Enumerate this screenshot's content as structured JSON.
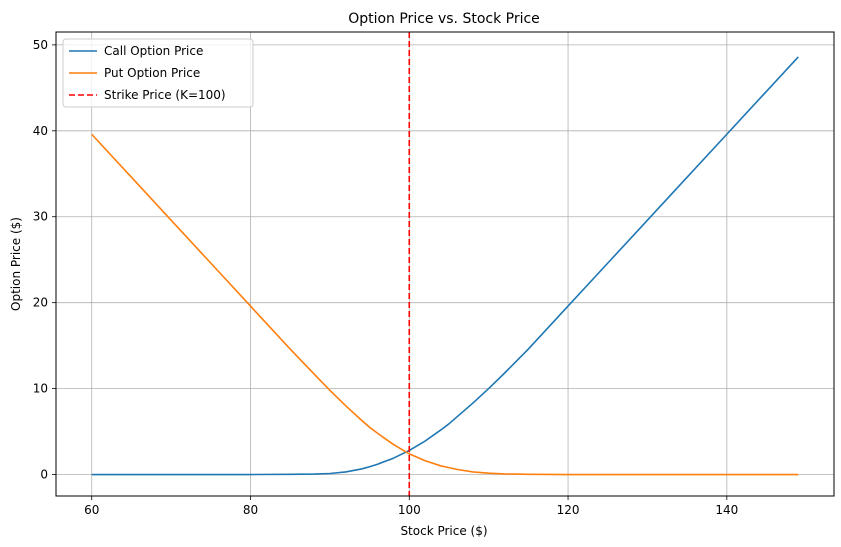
{
  "chart_data": {
    "type": "line",
    "title": "Option Price vs. Stock Price",
    "xlabel": "Stock Price ($)",
    "ylabel": "Option Price ($)",
    "xlim": [
      55.5,
      153.5
    ],
    "ylim": [
      -2.5,
      51.5
    ],
    "xticks": [
      60,
      80,
      100,
      120,
      140
    ],
    "yticks": [
      0,
      10,
      20,
      30,
      40,
      50
    ],
    "grid": true,
    "legend_position": "top-left",
    "x": [
      60,
      65,
      70,
      75,
      80,
      85,
      88,
      90,
      92,
      94,
      95,
      96,
      98,
      100,
      102,
      104,
      105,
      106,
      108,
      110,
      112,
      115,
      120,
      125,
      130,
      135,
      140,
      145,
      149
    ],
    "series": [
      {
        "name": "Call Option Price",
        "color": "#1f77b4",
        "style": "solid",
        "values": [
          0.0,
          0.0,
          0.0,
          0.0,
          0.0,
          0.02,
          0.05,
          0.12,
          0.3,
          0.65,
          0.9,
          1.2,
          1.9,
          2.8,
          3.9,
          5.2,
          5.9,
          6.7,
          8.3,
          10.0,
          11.8,
          14.6,
          19.6,
          24.6,
          29.6,
          34.6,
          39.6,
          44.6,
          48.6
        ]
      },
      {
        "name": "Put Option Price",
        "color": "#ff7f0e",
        "style": "solid",
        "values": [
          39.6,
          34.6,
          29.6,
          24.6,
          19.6,
          14.6,
          11.7,
          9.8,
          8.0,
          6.3,
          5.5,
          4.8,
          3.5,
          2.4,
          1.6,
          1.0,
          0.8,
          0.6,
          0.3,
          0.15,
          0.07,
          0.02,
          0.0,
          0.0,
          0.0,
          0.0,
          0.0,
          0.0,
          0.0
        ]
      }
    ],
    "vline": {
      "name": "Strike Price (K=100)",
      "x": 100,
      "color": "#ff0000",
      "style": "dashed"
    }
  }
}
